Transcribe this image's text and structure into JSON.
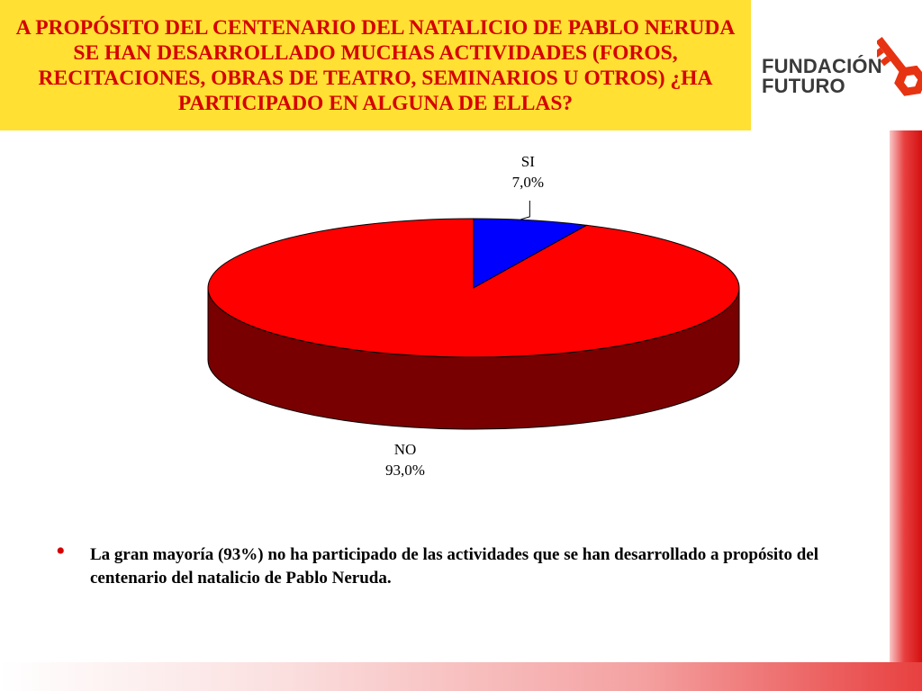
{
  "title": "A PROPÓSITO DEL CENTENARIO DEL NATALICIO DE PABLO NERUDA SE HAN DESARROLLADO MUCHAS ACTIVIDADES (FOROS, RECITACIONES, OBRAS DE TEATRO, SEMINARIOS U OTROS) ¿HA PARTICIPADO EN ALGUNA DE ELLAS?",
  "logo": {
    "line1": "FUNDACIÓN",
    "line2": "FUTURO",
    "icon": "key-icon"
  },
  "colors": {
    "title_bg": "#ffe033",
    "title_text": "#d60000",
    "accent": "#e84040"
  },
  "chart_data": {
    "type": "pie",
    "style": "3d",
    "title": "",
    "slices": [
      {
        "label": "SI",
        "value": 7.0,
        "value_label": "7,0%",
        "color": "#0000ff"
      },
      {
        "label": "NO",
        "value": 93.0,
        "value_label": "93,0%",
        "color": "#ff0000"
      }
    ]
  },
  "note": {
    "bullet": "•",
    "text": "La gran mayoría (93%) no ha participado de las actividades que se han desarrollado a propósito del centenario del natalicio de Pablo Neruda."
  }
}
